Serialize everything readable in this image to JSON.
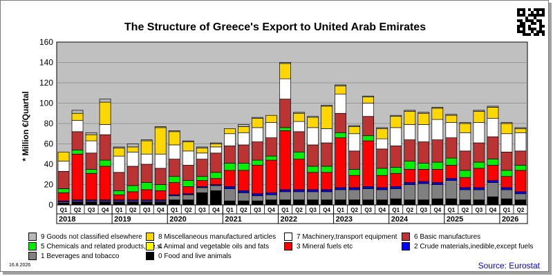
{
  "chart_data": {
    "type": "bar",
    "stacked": true,
    "title": "The Structure of Greece's Export to United Arab Emirates",
    "ylabel": "* Million €/Quartal",
    "ylim": [
      0,
      160
    ],
    "yticks": [
      0,
      20,
      40,
      60,
      80,
      100,
      120,
      140,
      160
    ],
    "grid": true,
    "legend_position": "bottom",
    "quarters": [
      "Q1",
      "Q2",
      "Q3",
      "Q4",
      "Q1",
      "Q2",
      "Q3",
      "Q4",
      "Q1",
      "Q2",
      "Q3",
      "Q4",
      "Q1",
      "Q2",
      "Q3",
      "Q4",
      "Q1",
      "Q2",
      "Q3",
      "Q4",
      "Q1",
      "Q2",
      "Q3",
      "Q4",
      "Q1",
      "Q2",
      "Q3",
      "Q4",
      "Q1",
      "Q2",
      "Q3",
      "Q4",
      "Q1",
      "Q2"
    ],
    "years": [
      {
        "label": "2018",
        "count": 4
      },
      {
        "label": "2019",
        "count": 4
      },
      {
        "label": "2020",
        "count": 4
      },
      {
        "label": "2021",
        "count": 4
      },
      {
        "label": "2022",
        "count": 4
      },
      {
        "label": "2023",
        "count": 4
      },
      {
        "label": "2024",
        "count": 4
      },
      {
        "label": "2025",
        "count": 4
      },
      {
        "label": "2026",
        "count": 2
      }
    ],
    "series": [
      {
        "name": "0 Food and live animals",
        "color": "#000000",
        "values": [
          2,
          3,
          3,
          3,
          3,
          3,
          3,
          3,
          5,
          5,
          12,
          14,
          4,
          4,
          4,
          5,
          5,
          5,
          5,
          5,
          5,
          5,
          5,
          5,
          6,
          5,
          5,
          6,
          6,
          5,
          5,
          8,
          6,
          5
        ]
      },
      {
        "name": "1 Beverages and tobacco",
        "color": "#808080",
        "values": [
          1,
          1,
          1,
          1,
          1,
          1,
          1,
          1,
          4,
          5,
          5,
          5,
          12,
          8,
          5,
          5,
          8,
          8,
          8,
          8,
          10,
          10,
          11,
          10,
          10,
          15,
          16,
          14,
          18,
          10,
          10,
          14,
          9,
          6
        ]
      },
      {
        "name": "2 Crude materials,inedible,except fuels",
        "color": "#0000ff",
        "values": [
          1,
          1,
          1,
          1,
          1,
          1,
          1,
          1,
          1,
          1,
          1,
          1,
          2,
          2,
          2,
          2,
          2,
          2,
          2,
          2,
          2,
          2,
          2,
          2,
          2,
          2,
          2,
          2,
          2,
          2,
          2,
          2,
          2,
          2
        ]
      },
      {
        "name": "3 Mineral fuels etc",
        "color": "#ff0000",
        "values": [
          8,
          45,
          26,
          33,
          5,
          8,
          10,
          9,
          12,
          7,
          6,
          6,
          16,
          20,
          28,
          32,
          58,
          30,
          17,
          17,
          49,
          12,
          45,
          12,
          13,
          13,
          12,
          13,
          13,
          10,
          19,
          15,
          11,
          21
        ]
      },
      {
        "name": "4 Animal and vegetable oils and fats",
        "color": "#ffff00",
        "values": [
          0,
          0,
          0,
          0,
          0,
          0,
          0,
          0,
          0,
          0,
          0,
          0,
          0,
          0,
          0,
          0,
          0,
          0,
          0,
          0,
          0,
          0,
          0,
          0,
          0,
          0,
          0,
          0,
          0,
          0,
          0,
          0,
          0,
          0
        ]
      },
      {
        "name": "5 Chemicals and related products,n.e.s.",
        "color": "#00ee00",
        "values": [
          4,
          4,
          4,
          6,
          4,
          6,
          7,
          6,
          6,
          6,
          4,
          6,
          7,
          7,
          5,
          4,
          3,
          7,
          6,
          6,
          5,
          6,
          5,
          7,
          6,
          8,
          6,
          7,
          7,
          7,
          6,
          6,
          6,
          5
        ]
      },
      {
        "name": "6 Basic manufactures",
        "color": "#bb3333",
        "values": [
          17,
          18,
          16,
          25,
          18,
          19,
          18,
          16,
          17,
          15,
          17,
          19,
          17,
          18,
          18,
          18,
          28,
          20,
          21,
          23,
          19,
          18,
          19,
          19,
          21,
          21,
          21,
          22,
          20,
          19,
          19,
          22,
          18,
          14
        ]
      },
      {
        "name": "7 Machinery,transport equipment",
        "color": "#ffffff",
        "values": [
          10,
          11,
          12,
          10,
          16,
          14,
          10,
          14,
          14,
          14,
          6,
          6,
          12,
          12,
          14,
          15,
          20,
          10,
          17,
          14,
          19,
          17,
          13,
          10,
          18,
          15,
          17,
          20,
          15,
          18,
          20,
          18,
          18,
          18
        ]
      },
      {
        "name": "8 Miscellaneous manufactured articles",
        "color": "#ffd700",
        "values": [
          9,
          7,
          6,
          22,
          8,
          5,
          13,
          26,
          13,
          9,
          5,
          3,
          5,
          6,
          9,
          7,
          15,
          8,
          10,
          22,
          8,
          7,
          6,
          10,
          11,
          13,
          11,
          11,
          7,
          9,
          11,
          11,
          10,
          4
        ]
      },
      {
        "name": "9 Goods not classified elsewhere",
        "color": "#b8b8b8",
        "values": [
          0,
          3,
          2,
          3,
          1,
          3,
          1,
          1,
          1,
          1,
          1,
          1,
          0,
          2,
          1,
          0,
          1,
          1,
          1,
          1,
          1,
          1,
          1,
          1,
          1,
          1,
          1,
          1,
          1,
          1,
          1,
          1,
          1,
          1
        ]
      }
    ]
  },
  "legend_items": [
    {
      "label": "9 Goods not classified elsewhere",
      "color": "#b8b8b8"
    },
    {
      "label": "8 Miscellaneous manufactured articles",
      "color": "#ffd700"
    },
    {
      "label": "7 Machinery,transport equipment",
      "color": "#ffffff"
    },
    {
      "label": "6 Basic manufactures",
      "color": "#bb3333"
    },
    {
      "label": "5 Chemicals and related products,n.e.s.",
      "color": "#00ee00"
    },
    {
      "label": "4 Animal and vegetable oils and fats",
      "color": "#ffff00"
    },
    {
      "label": "3 Mineral fuels etc",
      "color": "#ff0000"
    },
    {
      "label": "2 Crude materials,inedible,except fuels",
      "color": "#0000ff"
    },
    {
      "label": "1 Beverages and tobacco",
      "color": "#808080"
    },
    {
      "label": "0 Food and live animals",
      "color": "#000000"
    }
  ],
  "footer": {
    "date": "16.8.2026",
    "source": "Source: Eurostat"
  },
  "colors": {
    "plot_background": "#c0c0c0",
    "grid": "#888888",
    "bar_outline": "#000000"
  }
}
